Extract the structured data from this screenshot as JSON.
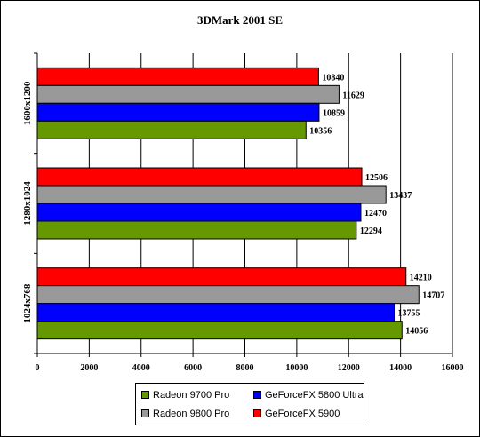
{
  "chart_data": {
    "type": "bar",
    "orientation": "horizontal",
    "title": "3DMark 2001 SE",
    "categories": [
      "1600x1200",
      "1280x1024",
      "1024x768"
    ],
    "series": [
      {
        "name": "GeForceFX 5900",
        "color": "#ff0000",
        "values": [
          10840,
          12506,
          14210
        ]
      },
      {
        "name": "Radeon 9800 Pro",
        "color": "#999999",
        "values": [
          11629,
          13437,
          14707
        ]
      },
      {
        "name": "GeForceFX 5800 Ultra",
        "color": "#0000ff",
        "values": [
          10859,
          12470,
          13755
        ]
      },
      {
        "name": "Radeon 9700 Pro",
        "color": "#669900",
        "values": [
          10356,
          12294,
          14056
        ]
      }
    ],
    "xlim": [
      0,
      16000
    ],
    "xticks": [
      0,
      2000,
      4000,
      6000,
      8000,
      10000,
      12000,
      14000,
      16000
    ],
    "grid": true,
    "legend_position": "bottom",
    "legend_order": [
      "Radeon 9700 Pro",
      "GeForceFX 5800 Ultra",
      "Radeon 9800 Pro",
      "GeForceFX 5900"
    ]
  }
}
